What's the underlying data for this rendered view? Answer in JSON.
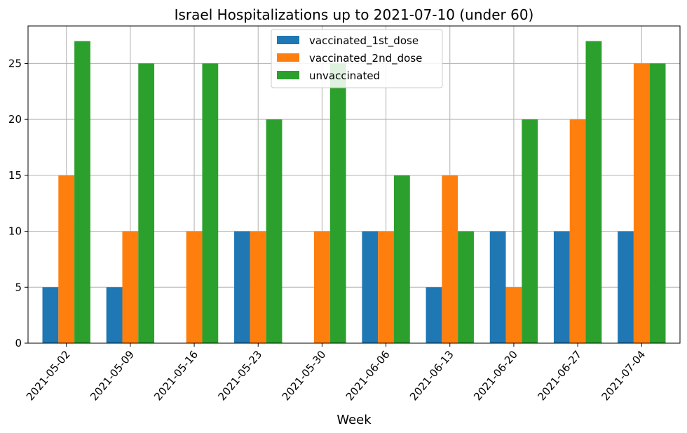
{
  "chart_data": {
    "type": "bar",
    "title": "Israel Hospitalizations up to 2021-07-10 (under 60)",
    "xlabel": "Week",
    "ylabel": "",
    "categories": [
      "2021-05-02",
      "2021-05-09",
      "2021-05-16",
      "2021-05-23",
      "2021-05-30",
      "2021-06-06",
      "2021-06-13",
      "2021-06-20",
      "2021-06-27",
      "2021-07-04"
    ],
    "series": [
      {
        "name": "vaccinated_1st_dose",
        "color": "#1f77b4",
        "values": [
          5,
          5,
          0,
          10,
          0,
          10,
          5,
          10,
          10,
          10
        ]
      },
      {
        "name": "vaccinated_2nd_dose",
        "color": "#ff7f0e",
        "values": [
          15,
          10,
          10,
          10,
          10,
          10,
          15,
          5,
          20,
          25
        ]
      },
      {
        "name": "unvaccinated",
        "color": "#2ca02c",
        "values": [
          27,
          25,
          25,
          20,
          25,
          15,
          10,
          20,
          27,
          25
        ]
      }
    ],
    "ylim": [
      0,
      28.35
    ],
    "yticks": [
      0,
      5,
      10,
      15,
      20,
      25
    ],
    "grid": true,
    "legend_position": "top-center"
  }
}
